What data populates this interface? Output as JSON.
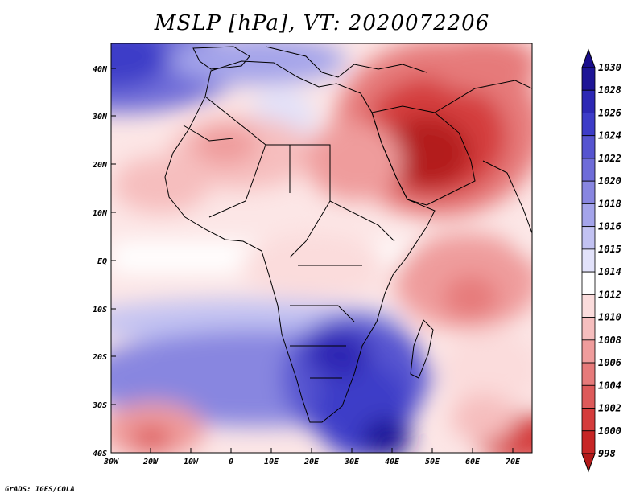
{
  "title": "MSLP [hPa], VT: 2020072206",
  "credit": "GrADS: IGES/COLA",
  "map": {
    "lat_labels": [
      "40N",
      "30N",
      "20N",
      "10N",
      "EQ",
      "10S",
      "20S",
      "30S",
      "40S"
    ],
    "lon_labels": [
      "30W",
      "20W",
      "10W",
      "0",
      "10E",
      "20E",
      "30E",
      "40E",
      "50E",
      "60E",
      "70E"
    ]
  },
  "colorbar": {
    "levels": [
      "1030",
      "1028",
      "1026",
      "1024",
      "1022",
      "1020",
      "1018",
      "1016",
      "1015",
      "1014",
      "1012",
      "1010",
      "1008",
      "1006",
      "1004",
      "1002",
      "1000",
      "998"
    ],
    "top_color": "#1a0e8c",
    "bottom_color": "#b31a1a",
    "colors": [
      "#1e1596",
      "#2d28b4",
      "#3d3cc8",
      "#5654d0",
      "#6e6cd8",
      "#8886e0",
      "#a4a4ea",
      "#c2c2f2",
      "#e2e2fa",
      "#ffffff",
      "#fbdcdc",
      "#f6bebe",
      "#ef9c9c",
      "#e67a7a",
      "#dd5a5a",
      "#d43c3c",
      "#c72626",
      "#b31a1a"
    ]
  }
}
